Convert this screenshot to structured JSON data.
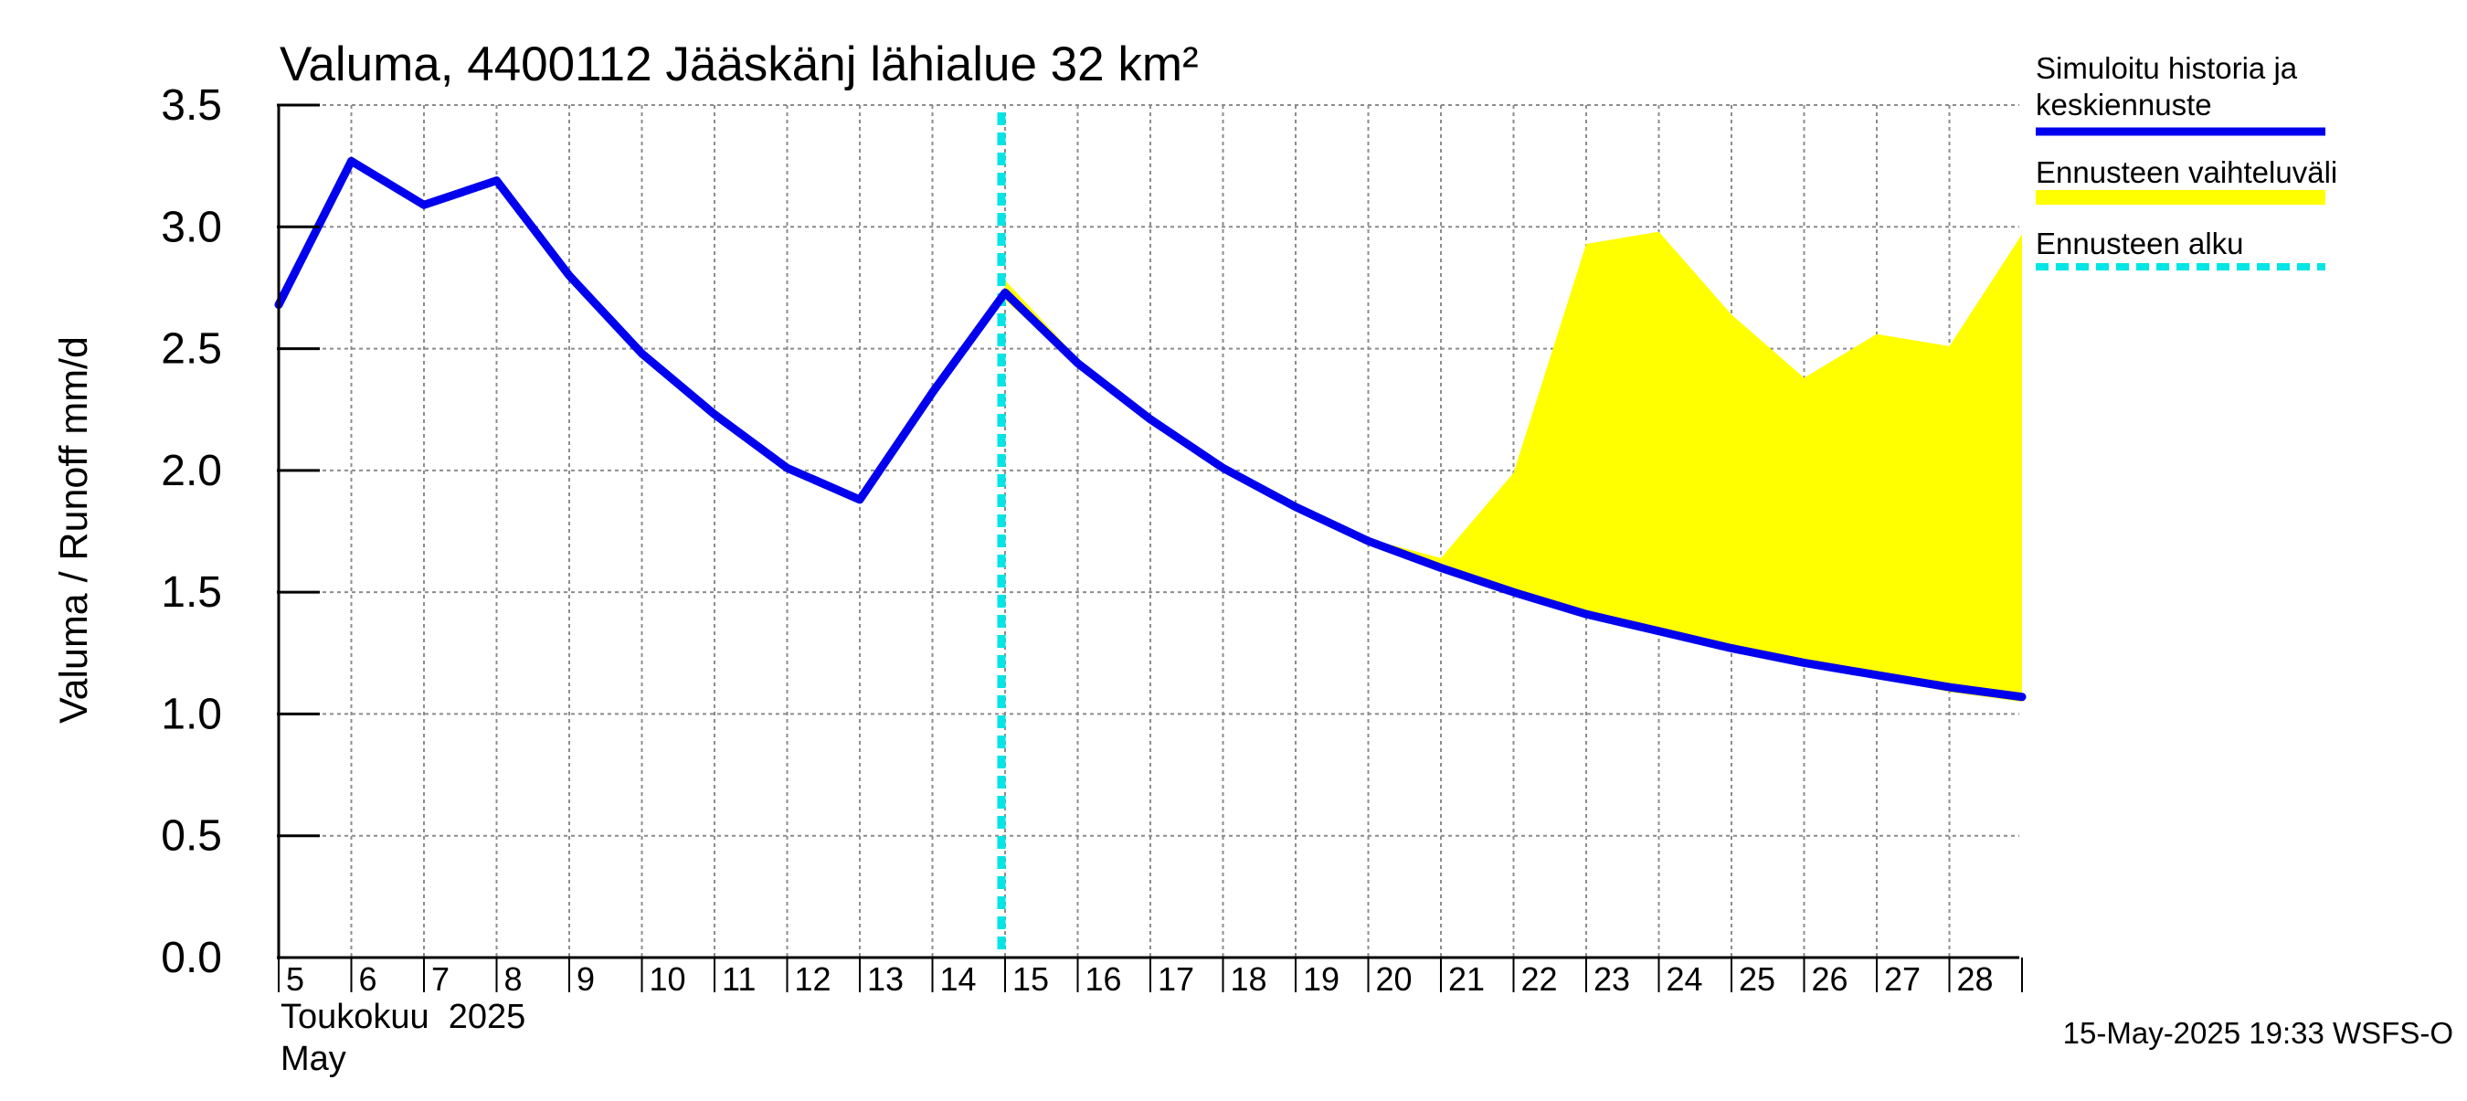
{
  "chart_data": {
    "type": "line",
    "title": "Valuma, 4400112 Jääskänj lähialue 32 km²",
    "ylabel": "Valuma / Runoff     mm/d",
    "ylim": [
      0,
      3.5
    ],
    "y_ticks": [
      "0.0",
      "0.5",
      "1.0",
      "1.5",
      "2.0",
      "2.5",
      "3.0",
      "3.5"
    ],
    "x_tick_labels": [
      "5",
      "6",
      "7",
      "8",
      "9",
      "10",
      "11",
      "12",
      "13",
      "14",
      "15",
      "16",
      "17",
      "18",
      "19",
      "20",
      "21",
      "22",
      "23",
      "24",
      "25",
      "26",
      "27",
      "28"
    ],
    "x_axis_month_fi": "Toukokuu  2025",
    "x_axis_month_en": "May",
    "grid": true,
    "legend_position": "right",
    "forecast_start_day": 15,
    "series": [
      {
        "name": "Simuloitu historia ja keskiennuste",
        "color": "#0000ee",
        "x": [
          5,
          6,
          7,
          8,
          9,
          10,
          11,
          12,
          13,
          14,
          15,
          16,
          17,
          18,
          19,
          20,
          21,
          22,
          23,
          24,
          25,
          26,
          27,
          28,
          29
        ],
        "values": [
          2.68,
          3.27,
          3.09,
          3.19,
          2.8,
          2.48,
          2.23,
          2.01,
          1.88,
          2.32,
          2.73,
          2.44,
          2.21,
          2.01,
          1.85,
          1.71,
          1.6,
          1.5,
          1.41,
          1.34,
          1.27,
          1.21,
          1.16,
          1.11,
          1.07
        ]
      },
      {
        "name": "Ennusteen vaihteluväli",
        "color": "#ffff00",
        "type": "area",
        "x": [
          15,
          16,
          17,
          18,
          19,
          20,
          21,
          22,
          23,
          24,
          25,
          26,
          27,
          28,
          29
        ],
        "upper": [
          2.78,
          2.46,
          2.23,
          2.02,
          1.86,
          1.72,
          1.64,
          1.99,
          2.93,
          2.98,
          2.64,
          2.38,
          2.56,
          2.51,
          2.97
        ],
        "lower": [
          2.7,
          2.43,
          2.2,
          2.0,
          1.84,
          1.7,
          1.59,
          1.49,
          1.4,
          1.33,
          1.26,
          1.2,
          1.15,
          1.09,
          1.05
        ]
      },
      {
        "name": "Ennusteen alku",
        "color": "#00e5e5",
        "type": "vline",
        "x": 15
      }
    ],
    "legend": [
      {
        "label_lines": [
          "Simuloitu historia ja",
          "keskiennuste"
        ],
        "color": "#0000ee",
        "style": "solid"
      },
      {
        "label_lines": [
          "Ennusteen vaihteluväli"
        ],
        "color": "#ffff00",
        "style": "solid"
      },
      {
        "label_lines": [
          "Ennusteen alku"
        ],
        "color": "#00e5e5",
        "style": "dashed"
      }
    ],
    "footer": "15-May-2025 19:33 WSFS-O"
  }
}
